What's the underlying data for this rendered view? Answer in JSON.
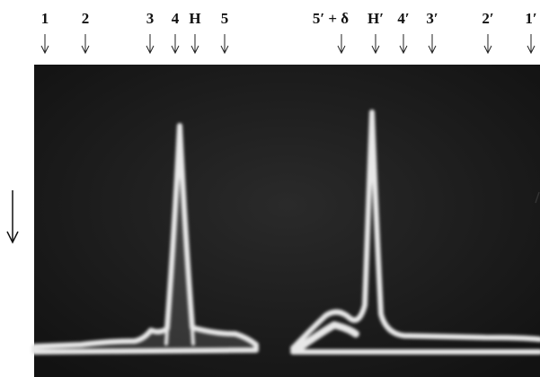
{
  "labels": [
    "1",
    "2",
    "3",
    "4",
    "H",
    "5",
    "5′ + δ",
    "H′",
    "4′",
    "3′",
    "2′",
    "1′"
  ]
}
